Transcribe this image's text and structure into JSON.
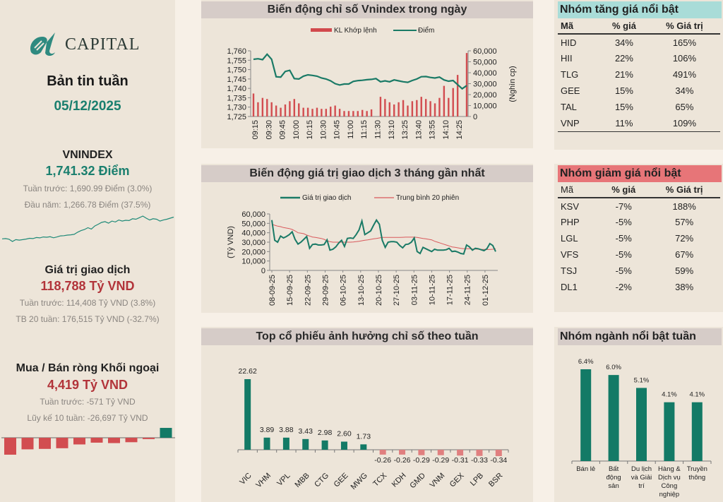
{
  "colors": {
    "teal": "#1a7a66",
    "red": "#d2494d",
    "red_light": "#e07f7f",
    "panel": "#ede5d9",
    "title_bg": "#d6ccc8",
    "up_bg": "#a9dcd8",
    "down_bg": "#e77578"
  },
  "brand": {
    "name": "CAPITAL"
  },
  "left": {
    "report_title": "Bản tin tuần",
    "report_date": "05/12/2025",
    "vnindex": {
      "label": "VNINDEX",
      "value": "1,741.32 Điểm",
      "prev_week": "Tuần trước: 1,690.99 Điểm (3.0%)",
      "year_start": "Đầu năm: 1,266.78 Điểm (37.5%)"
    },
    "trading_value": {
      "label": "Giá trị giao dịch",
      "value": "118,788 Tỷ VND",
      "prev_week": "Tuần trước: 114,408 Tỷ VND (3.8%)",
      "avg20": "TB 20 tuần: 176,515 Tỷ VND (-32.7%)"
    },
    "foreign": {
      "label": "Mua / Bán ròng Khối ngoại",
      "value": "4,419 Tỷ VND",
      "prev_week": "Tuần trước: -571 Tỷ VND",
      "cum10": "Lũy kế 10 tuần: -26,697 Tỷ VND"
    }
  },
  "chart_data": [
    {
      "id": "vnindex_sparkline",
      "type": "line",
      "title": "",
      "values": [
        1268,
        1270,
        1265,
        1248,
        1262,
        1258,
        1262,
        1266,
        1272,
        1270,
        1278,
        1275,
        1282,
        1280,
        1284,
        1276,
        1282,
        1290,
        1292,
        1296,
        1298,
        1302,
        1318,
        1330,
        1338,
        1352,
        1342,
        1365,
        1378,
        1392,
        1398,
        1386,
        1402,
        1395,
        1410,
        1402,
        1408,
        1406,
        1420,
        1416,
        1428,
        1440,
        1424,
        1410,
        1420,
        1416,
        1402,
        1410,
        1416,
        1424,
        1432
      ]
    },
    {
      "id": "foreign_net_10w",
      "type": "bar",
      "title": "",
      "values": [
        -7600,
        -5200,
        -5000,
        -4700,
        -3000,
        -2200,
        -2400,
        -2000,
        -600,
        4419
      ]
    },
    {
      "id": "intraday",
      "type": "bar+line",
      "title": "Biến động chỉ số Vnindex trong ngày",
      "legend": [
        "KL Khớp lệnh",
        "Điểm"
      ],
      "legend_position": "top",
      "x_ticks": [
        "09:15",
        "09:30",
        "09:45",
        "10:00",
        "10:15",
        "10:30",
        "10:45",
        "11:00",
        "11:15",
        "11:30",
        "13:10",
        "13:25",
        "13:40",
        "13:55",
        "14:10",
        "14:25"
      ],
      "y_left": {
        "range": [
          1725,
          1760
        ],
        "ticks": [
          "1,760",
          "1,755",
          "1,750",
          "1,745",
          "1,740",
          "1,735",
          "1,730",
          "1,725"
        ]
      },
      "y_right": {
        "label": "(Nghìn cp)",
        "range": [
          0,
          60000
        ],
        "ticks": [
          "60,000",
          "50,000",
          "40,000",
          "30,000",
          "20,000",
          "10,000",
          "0"
        ]
      },
      "series": [
        {
          "name": "KL Khớp lệnh",
          "type": "bar",
          "axis": "right",
          "values": [
            21000,
            13000,
            17000,
            16000,
            13000,
            10000,
            8000,
            11000,
            14000,
            16000,
            12000,
            8000,
            8000,
            7000,
            8000,
            7000,
            7000,
            9000,
            10000,
            7000,
            5000,
            5000,
            5000,
            5000,
            6000,
            5000,
            6500,
            null,
            18000,
            16000,
            13000,
            11000,
            13000,
            15000,
            10000,
            14000,
            15000,
            18000,
            16000,
            14000,
            12000,
            17000,
            28000,
            17000,
            26000,
            38000,
            null,
            58000
          ]
        },
        {
          "name": "Điểm",
          "type": "line",
          "axis": "left",
          "values": [
            1755.5,
            1755.8,
            1755.3,
            1758.2,
            1755.5,
            1746.2,
            1746.0,
            1749.0,
            1749.6,
            1745.2,
            1745.0,
            1746.5,
            1747.2,
            1746.9,
            1746.5,
            1745.5,
            1745.0,
            1744.0,
            1742.5,
            1741.8,
            1742.3,
            1742.3,
            1743.7,
            1744.1,
            1744.3,
            1744.6,
            1744.8,
            1745.2,
            1743.5,
            1744.0,
            1743.5,
            1744.5,
            1744.0,
            1743.5,
            1743.2,
            1744.2,
            1745.0,
            1746.2,
            1746.3,
            1745.8,
            1745.5,
            1746.0,
            1744.5,
            1743.8,
            1744.2,
            1742.0,
            1739.8,
            1741.5
          ]
        }
      ]
    },
    {
      "id": "trading_value_3m",
      "type": "line",
      "title": "Biến động giá trị giao dịch 3 tháng gần nhất",
      "legend": [
        "Giá trị giao dịch",
        "Trung bình 20 phiên"
      ],
      "legend_position": "top",
      "ylabel": "(Tỷ VND)",
      "ylim": [
        0,
        60000
      ],
      "y_ticks": [
        "60,000",
        "50,000",
        "40,000",
        "30,000",
        "20,000",
        "10,000",
        "0"
      ],
      "x_ticks": [
        "08-09-25",
        "15-09-25",
        "22-09-25",
        "29-09-25",
        "06-10-25",
        "13-10-25",
        "20-10-25",
        "27-10-25",
        "03-11-25",
        "10-11-25",
        "17-11-25",
        "24-11-25",
        "01-12-25"
      ],
      "series": [
        {
          "name": "Giá trị giao dịch",
          "values": [
            53500,
            32000,
            30000,
            36500,
            34500,
            36000,
            38000,
            41000,
            33000,
            28000,
            30000,
            33000,
            36000,
            23500,
            27500,
            28000,
            27000,
            27000,
            27500,
            32500,
            21500,
            22500,
            25000,
            29000,
            32000,
            25500,
            34000,
            34500,
            34000,
            38000,
            43000,
            52500,
            38000,
            40000,
            42000,
            48000,
            53500,
            49000,
            32000,
            24500,
            30000,
            30500,
            30500,
            30000,
            26500,
            24000,
            27500,
            28000,
            30000,
            34500,
            20000,
            18000,
            24500,
            23000,
            21500,
            20000,
            22500,
            21500,
            21500,
            21500,
            22000,
            23500,
            20000,
            20500,
            19500,
            18000,
            17500,
            27000,
            25000,
            21500,
            23500,
            23000,
            22000,
            21000,
            23000,
            28500,
            26500,
            20000
          ]
        },
        {
          "name": "Trung bình 20 phiên",
          "values": [
            49000,
            48000,
            47000,
            46500,
            45500,
            45000,
            44500,
            43500,
            42000,
            40000,
            39500,
            39000,
            37500,
            36500,
            35500,
            35000,
            34500,
            34000,
            33000,
            31500,
            30500,
            30000,
            30000,
            30000,
            30000,
            30000,
            30000,
            30000,
            30200,
            30500,
            31000,
            31500,
            32000,
            32500,
            33000,
            33500,
            34000,
            34500,
            35000,
            35000,
            35000,
            35000,
            35000,
            35000,
            35000,
            35200,
            35300,
            35300,
            35300,
            35300,
            35000,
            34500,
            34000,
            33500,
            33000,
            32500,
            31000,
            30000,
            29000,
            28000,
            27000,
            26000,
            25000,
            24500,
            24000,
            23500,
            23000,
            23000,
            23000,
            22800,
            22700,
            22500,
            22300,
            22300,
            22200,
            22200,
            22500,
            23000
          ]
        }
      ]
    },
    {
      "id": "top_influence",
      "type": "bar",
      "title": "Top cổ phiếu ảnh hưởng chỉ số theo tuần",
      "categories": [
        "VIC",
        "VHM",
        "VPL",
        "MBB",
        "CTG",
        "GEE",
        "MWG",
        "TCX",
        "KDH",
        "GMD",
        "VNM",
        "GEX",
        "LPB",
        "BSR"
      ],
      "values": [
        22.62,
        3.89,
        3.88,
        3.43,
        2.98,
        2.6,
        1.73,
        -0.26,
        -0.26,
        -0.29,
        -0.29,
        -0.31,
        -0.33,
        -0.34
      ],
      "labels": [
        "22.62",
        "3.89",
        "3.88",
        "3.43",
        "2.98",
        "2.60",
        "1.73",
        "-0.26",
        "-0.26",
        "-0.29",
        "-0.29",
        "-0.31",
        "-0.33",
        "-0.34"
      ]
    },
    {
      "id": "top_sectors",
      "type": "bar",
      "title": "Nhóm ngành nổi bật tuần",
      "categories": [
        [
          "Bán lẻ"
        ],
        [
          "Bất",
          "động",
          "sản"
        ],
        [
          "Du lịch",
          "và Giải",
          "trí"
        ],
        [
          "Hàng &",
          "Dịch vụ",
          "Công",
          "nghiệp"
        ],
        [
          "Truyền",
          "thông"
        ]
      ],
      "values": [
        6.4,
        6.0,
        5.1,
        4.1,
        4.1
      ],
      "labels": [
        "6.4%",
        "6.0%",
        "5.1%",
        "4.1%",
        "4.1%"
      ]
    }
  ],
  "gainers": {
    "title": "Nhóm tăng giá nổi bật",
    "headers": [
      "Mã",
      "% giá",
      "% Giá trị"
    ],
    "rows": [
      [
        "HID",
        "34%",
        "165%"
      ],
      [
        "HII",
        "22%",
        "106%"
      ],
      [
        "TLG",
        "21%",
        "491%"
      ],
      [
        "GEE",
        "15%",
        "34%"
      ],
      [
        "TAL",
        "15%",
        "65%"
      ],
      [
        "VNP",
        "11%",
        "109%"
      ]
    ]
  },
  "losers": {
    "title": "Nhóm giảm giá nổi bật",
    "headers": [
      "Mã",
      "% giá",
      "% Giá trị"
    ],
    "rows": [
      [
        "KSV",
        "-7%",
        "188%"
      ],
      [
        "PHP",
        "-5%",
        "57%"
      ],
      [
        "LGL",
        "-5%",
        "72%"
      ],
      [
        "VFS",
        "-5%",
        "67%"
      ],
      [
        "TSJ",
        "-5%",
        "59%"
      ],
      [
        "DL1",
        "-2%",
        "38%"
      ]
    ]
  },
  "sectors": {
    "title": "Nhóm ngành nổi bật tuần"
  }
}
